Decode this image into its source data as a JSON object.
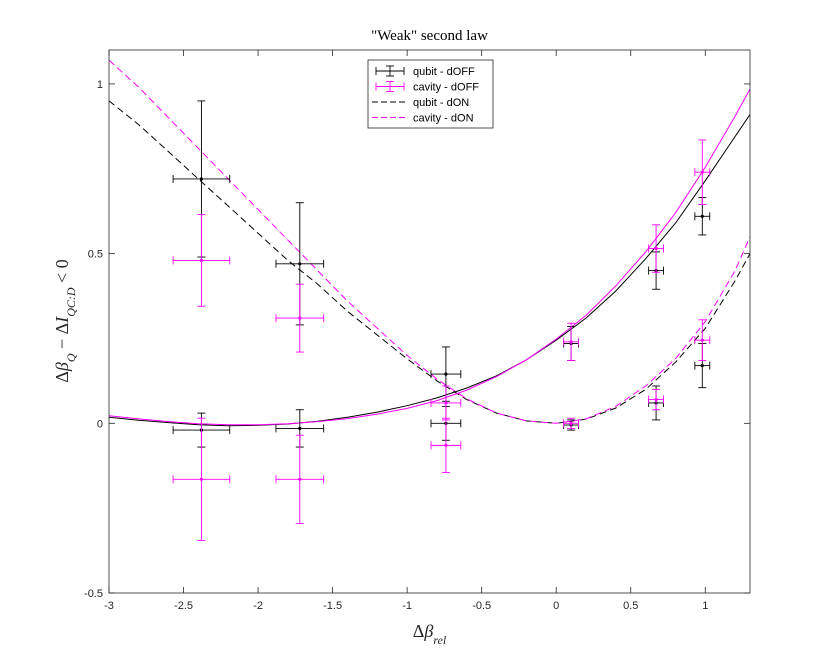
{
  "chart_data": {
    "type": "scatter",
    "title": "\"Weak\" second law",
    "xlabel": "Δβ_rel",
    "ylabel": "Δβ_Q − ΔI_QC:D < 0",
    "xlim": [
      -3,
      1.3
    ],
    "ylim": [
      -0.5,
      1.1
    ],
    "xticks": [
      -3,
      -2.5,
      -2,
      -1.5,
      -1,
      -0.5,
      0,
      0.5,
      1
    ],
    "xtick_labels": [
      "-3",
      "-2.5",
      "-2",
      "-1.5",
      "-1",
      "-0.5",
      "0",
      "0.5",
      "1"
    ],
    "yticks": [
      -0.5,
      0,
      0.5,
      1
    ],
    "ytick_labels": [
      "-0.5",
      "0",
      "0.5",
      "1"
    ],
    "grid": false,
    "legend_position": "top-center",
    "series": [
      {
        "name": "qubit - dOFF",
        "color": "#000000",
        "kind": "errorbar",
        "points": [
          {
            "x": -2.38,
            "y": 0.72,
            "xerr": 0.19,
            "yerr": 0.23
          },
          {
            "x": -1.72,
            "y": 0.47,
            "xerr": 0.16,
            "yerr": 0.18
          },
          {
            "x": -0.74,
            "y": 0.145,
            "xerr": 0.1,
            "yerr": 0.08
          },
          {
            "x": 0.1,
            "y": 0.235,
            "xerr": 0.05,
            "yerr": 0.05
          },
          {
            "x": 0.67,
            "y": 0.45,
            "xerr": 0.05,
            "yerr": 0.055
          },
          {
            "x": 0.98,
            "y": 0.61,
            "xerr": 0.05,
            "yerr": 0.055
          },
          {
            "x": -2.38,
            "y": -0.02,
            "xerr": 0.19,
            "yerr": 0.05
          },
          {
            "x": -1.72,
            "y": -0.015,
            "xerr": 0.16,
            "yerr": 0.055
          },
          {
            "x": -0.74,
            "y": 0.0,
            "xerr": 0.1,
            "yerr": 0.05
          },
          {
            "x": 0.1,
            "y": -0.005,
            "xerr": 0.05,
            "yerr": 0.015
          },
          {
            "x": 0.67,
            "y": 0.06,
            "xerr": 0.05,
            "yerr": 0.05
          },
          {
            "x": 0.98,
            "y": 0.17,
            "xerr": 0.05,
            "yerr": 0.065
          }
        ]
      },
      {
        "name": "cavity - dOFF",
        "color": "#ff00ff",
        "kind": "errorbar",
        "points": [
          {
            "x": -2.38,
            "y": 0.48,
            "xerr": 0.19,
            "yerr": 0.135
          },
          {
            "x": -1.72,
            "y": 0.31,
            "xerr": 0.16,
            "yerr": 0.1
          },
          {
            "x": -0.74,
            "y": 0.06,
            "xerr": 0.1,
            "yerr": 0.05
          },
          {
            "x": 0.1,
            "y": 0.24,
            "xerr": 0.05,
            "yerr": 0.055
          },
          {
            "x": 0.67,
            "y": 0.515,
            "xerr": 0.05,
            "yerr": 0.07
          },
          {
            "x": 0.98,
            "y": 0.74,
            "xerr": 0.05,
            "yerr": 0.095
          },
          {
            "x": -2.38,
            "y": -0.165,
            "xerr": 0.19,
            "yerr": 0.18
          },
          {
            "x": -1.72,
            "y": -0.165,
            "xerr": 0.16,
            "yerr": 0.13
          },
          {
            "x": -0.74,
            "y": -0.065,
            "xerr": 0.1,
            "yerr": 0.08
          },
          {
            "x": 0.1,
            "y": 0.0,
            "xerr": 0.05,
            "yerr": 0.015
          },
          {
            "x": 0.67,
            "y": 0.07,
            "xerr": 0.05,
            "yerr": 0.03
          },
          {
            "x": 0.98,
            "y": 0.245,
            "xerr": 0.05,
            "yerr": 0.06
          }
        ]
      },
      {
        "name": "qubit - dON",
        "color": "#000000",
        "kind": "dashed",
        "x": [
          -3,
          -2.8,
          -2.6,
          -2.4,
          -2.2,
          -2.0,
          -1.8,
          -1.6,
          -1.4,
          -1.2,
          -1.0,
          -0.8,
          -0.6,
          -0.4,
          -0.2,
          0.0,
          0.2,
          0.4,
          0.6,
          0.8,
          1.0,
          1.2,
          1.3
        ],
        "y": [
          0.95,
          0.88,
          0.8,
          0.72,
          0.64,
          0.56,
          0.48,
          0.41,
          0.33,
          0.26,
          0.19,
          0.125,
          0.07,
          0.03,
          0.007,
          0.0,
          0.012,
          0.045,
          0.1,
          0.18,
          0.28,
          0.42,
          0.5
        ]
      },
      {
        "name": "cavity - dON",
        "color": "#ff00ff",
        "kind": "dashed",
        "x": [
          -3,
          -2.8,
          -2.6,
          -2.4,
          -2.2,
          -2.0,
          -1.8,
          -1.6,
          -1.4,
          -1.2,
          -1.0,
          -0.8,
          -0.6,
          -0.4,
          -0.2,
          0.0,
          0.2,
          0.4,
          0.6,
          0.8,
          1.0,
          1.2,
          1.3
        ],
        "y": [
          1.07,
          0.99,
          0.9,
          0.81,
          0.72,
          0.63,
          0.54,
          0.45,
          0.36,
          0.28,
          0.2,
          0.13,
          0.072,
          0.03,
          0.007,
          0.0,
          0.013,
          0.05,
          0.11,
          0.19,
          0.3,
          0.45,
          0.55
        ]
      },
      {
        "name": "",
        "color": "#000000",
        "kind": "solid",
        "x": [
          -3,
          -2.8,
          -2.6,
          -2.4,
          -2.2,
          -2.0,
          -1.8,
          -1.6,
          -1.4,
          -1.2,
          -1.0,
          -0.8,
          -0.6,
          -0.4,
          -0.2,
          0.0,
          0.2,
          0.4,
          0.6,
          0.8,
          1.0,
          1.2,
          1.3
        ],
        "y": [
          0.018,
          0.009,
          0.002,
          -0.004,
          -0.007,
          -0.006,
          -0.002,
          0.006,
          0.018,
          0.033,
          0.052,
          0.075,
          0.104,
          0.14,
          0.187,
          0.245,
          0.31,
          0.39,
          0.485,
          0.59,
          0.715,
          0.845,
          0.91
        ]
      },
      {
        "name": "",
        "color": "#ff00ff",
        "kind": "solid",
        "x": [
          -3,
          -2.8,
          -2.6,
          -2.4,
          -2.2,
          -2.0,
          -1.8,
          -1.6,
          -1.4,
          -1.2,
          -1.0,
          -0.8,
          -0.6,
          -0.4,
          -0.2,
          0.0,
          0.2,
          0.4,
          0.6,
          0.8,
          1.0,
          1.2,
          1.3
        ],
        "y": [
          0.022,
          0.013,
          0.005,
          -0.001,
          -0.004,
          -0.004,
          -0.001,
          0.005,
          0.014,
          0.027,
          0.044,
          0.067,
          0.098,
          0.138,
          0.187,
          0.248,
          0.318,
          0.405,
          0.505,
          0.62,
          0.755,
          0.905,
          0.985
        ]
      }
    ]
  }
}
